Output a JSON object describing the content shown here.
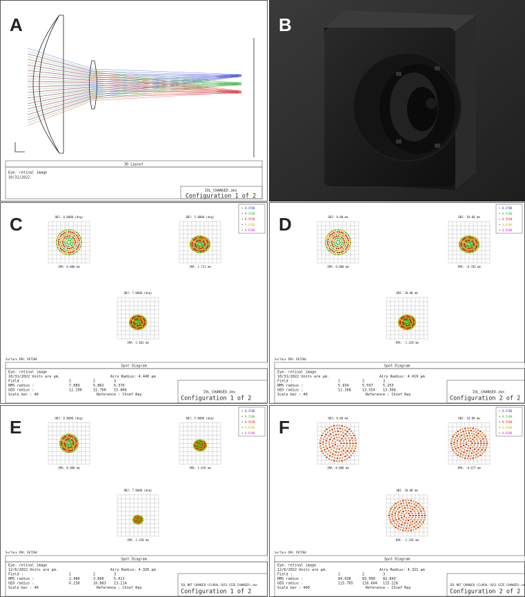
{
  "panels": [
    {
      "letter": "A",
      "caption": "3D Layout",
      "lines": [
        "Eye- retinal image",
        "10/31/2022"
      ],
      "file": "IOL_CHANGED.zmx",
      "config": "Configuration 1 of 2"
    },
    {
      "letter": "B"
    },
    {
      "letter": "C",
      "title": "Spot Diagram",
      "surface": "Surface IMA: RETINA",
      "fields": [
        {
          "obj": "OBJ: 0.0000 (deg)",
          "ima": "IMA: 0.000 mm"
        },
        {
          "obj": "OBJ: 5.0000 (deg)",
          "ima": "IMA: 1.711 mm"
        },
        {
          "obj": "OBJ: 7.0000 (deg)",
          "ima": "IMA: 2.401 mm"
        }
      ],
      "wavelengths": [
        "0.4700",
        "0.5100",
        "0.5550",
        "0.6100",
        "0.6500"
      ],
      "info": {
        "header": "Eye- retinal image",
        "date": "10/31/2022  Units are µm.",
        "airy": "Airy Radius: 4.440 µm",
        "field": [
          "Field  :",
          "1",
          "2",
          "3"
        ],
        "rms": [
          "RMS radius :",
          "7.089",
          "5.862",
          "6.376"
        ],
        "geo": [
          "GEO radius :",
          "12.190",
          "15.760",
          "15.866"
        ],
        "scale": "Scale bar : 40",
        "reference": "Reference  : Chief Ray"
      },
      "file": "IOL_CHANGED.zmx",
      "config": "Configuration 1 of 2"
    },
    {
      "letter": "D",
      "title": "Spot Diagram",
      "surface": "Surface IMA: RETINA",
      "fields": [
        {
          "obj": "OBJ: 0.00 mm",
          "ima": "IMA: 0.000 mm"
        },
        {
          "obj": "OBJ: 10.00 mm",
          "ima": "IMA: -0.703 mm"
        },
        {
          "obj": "OBJ: 20.00 mm",
          "ima": "IMA: -1.328 mm"
        }
      ],
      "wavelengths": [
        "0.4700",
        "0.5100",
        "0.5550",
        "0.6100",
        "0.6500"
      ],
      "info": {
        "header": "Eye- retinal image",
        "date": "10/31/2022  Units are µm.",
        "airy": "Airy Radius: 4.419 µm",
        "field": [
          "Field  :",
          "1",
          "2",
          "3"
        ],
        "rms": [
          "RMS radius :",
          "5.934",
          "5.597",
          "5.253"
        ],
        "geo": [
          "GEO radius :",
          "11.168",
          "13.554",
          "13.304"
        ],
        "scale": "Scale bar : 40",
        "reference": "Reference  : Chief Ray"
      },
      "file": "IOL_CHANGED.zmx",
      "config": "Configuration 2 of 2"
    },
    {
      "letter": "E",
      "title": "Spot Diagram",
      "surface": "Surface IMA: RETINA",
      "fields": [
        {
          "obj": "OBJ: 0.0000 (deg)",
          "ima": "IMA: 0.000 mm"
        },
        {
          "obj": "OBJ: 5.0000 (deg)",
          "ima": "IMA: 1.676 mm"
        },
        {
          "obj": "OBJ: 7.0000 (deg)",
          "ima": "IMA: 2.350 mm"
        }
      ],
      "wavelengths": [
        "0.4700",
        "0.5100",
        "0.5550",
        "0.6100",
        "0.6500"
      ],
      "info": {
        "header": "Eye- retinal image",
        "date": "12/6/2022  Units are µm.",
        "airy": "Airy Radius: 4.326 µm",
        "field": [
          "Field  :",
          "1",
          "2",
          "3"
        ],
        "rms": [
          "RMS radius :",
          "2.980",
          "3.660",
          "5.011"
        ],
        "geo": [
          "GEO radius :",
          "6.230",
          "10.883",
          "13.214"
        ],
        "scale": "Scale bar : 40",
        "reference": "Reference  : Chief Ray"
      },
      "file": "IOL NOT CHANGED (CLARAL-1013 SIZE CHANGED).zmx",
      "config": "Configuration 1 of 2"
    },
    {
      "letter": "F",
      "title": "Spot Diagram",
      "surface": "Surface IMA: RETINA",
      "fields": [
        {
          "obj": "OBJ: 0.00 mm",
          "ima": "IMA: 0.000 mm"
        },
        {
          "obj": "OBJ: 10.00 mm",
          "ima": "IMA: -0.677 mm"
        },
        {
          "obj": "OBJ: 20.00 mm",
          "ima": "IMA: -1.356 mm"
        }
      ],
      "wavelengths": [
        "0.4700",
        "0.5100",
        "0.5550",
        "0.6100",
        "0.6500"
      ],
      "info": {
        "header": "Eye- retinal image",
        "date": "12/6/2022  Units are µm.",
        "airy": "Airy Radius: 4.321 µm",
        "field": [
          "Field  :",
          "1",
          "2",
          "3"
        ],
        "rms": [
          "RMS radius :",
          "84.638",
          "83.990",
          "82.843"
        ],
        "geo": [
          "GEO radius :",
          "115.765",
          "116.604",
          "115.228"
        ],
        "scale": "Scale bar : 400",
        "reference": "Reference  : Chief Ray"
      },
      "file": "IOL NOT CHANGED (CLARAL-1013 SIZE CHANGED).zmx",
      "config": "Configuration 2 of 2"
    }
  ]
}
